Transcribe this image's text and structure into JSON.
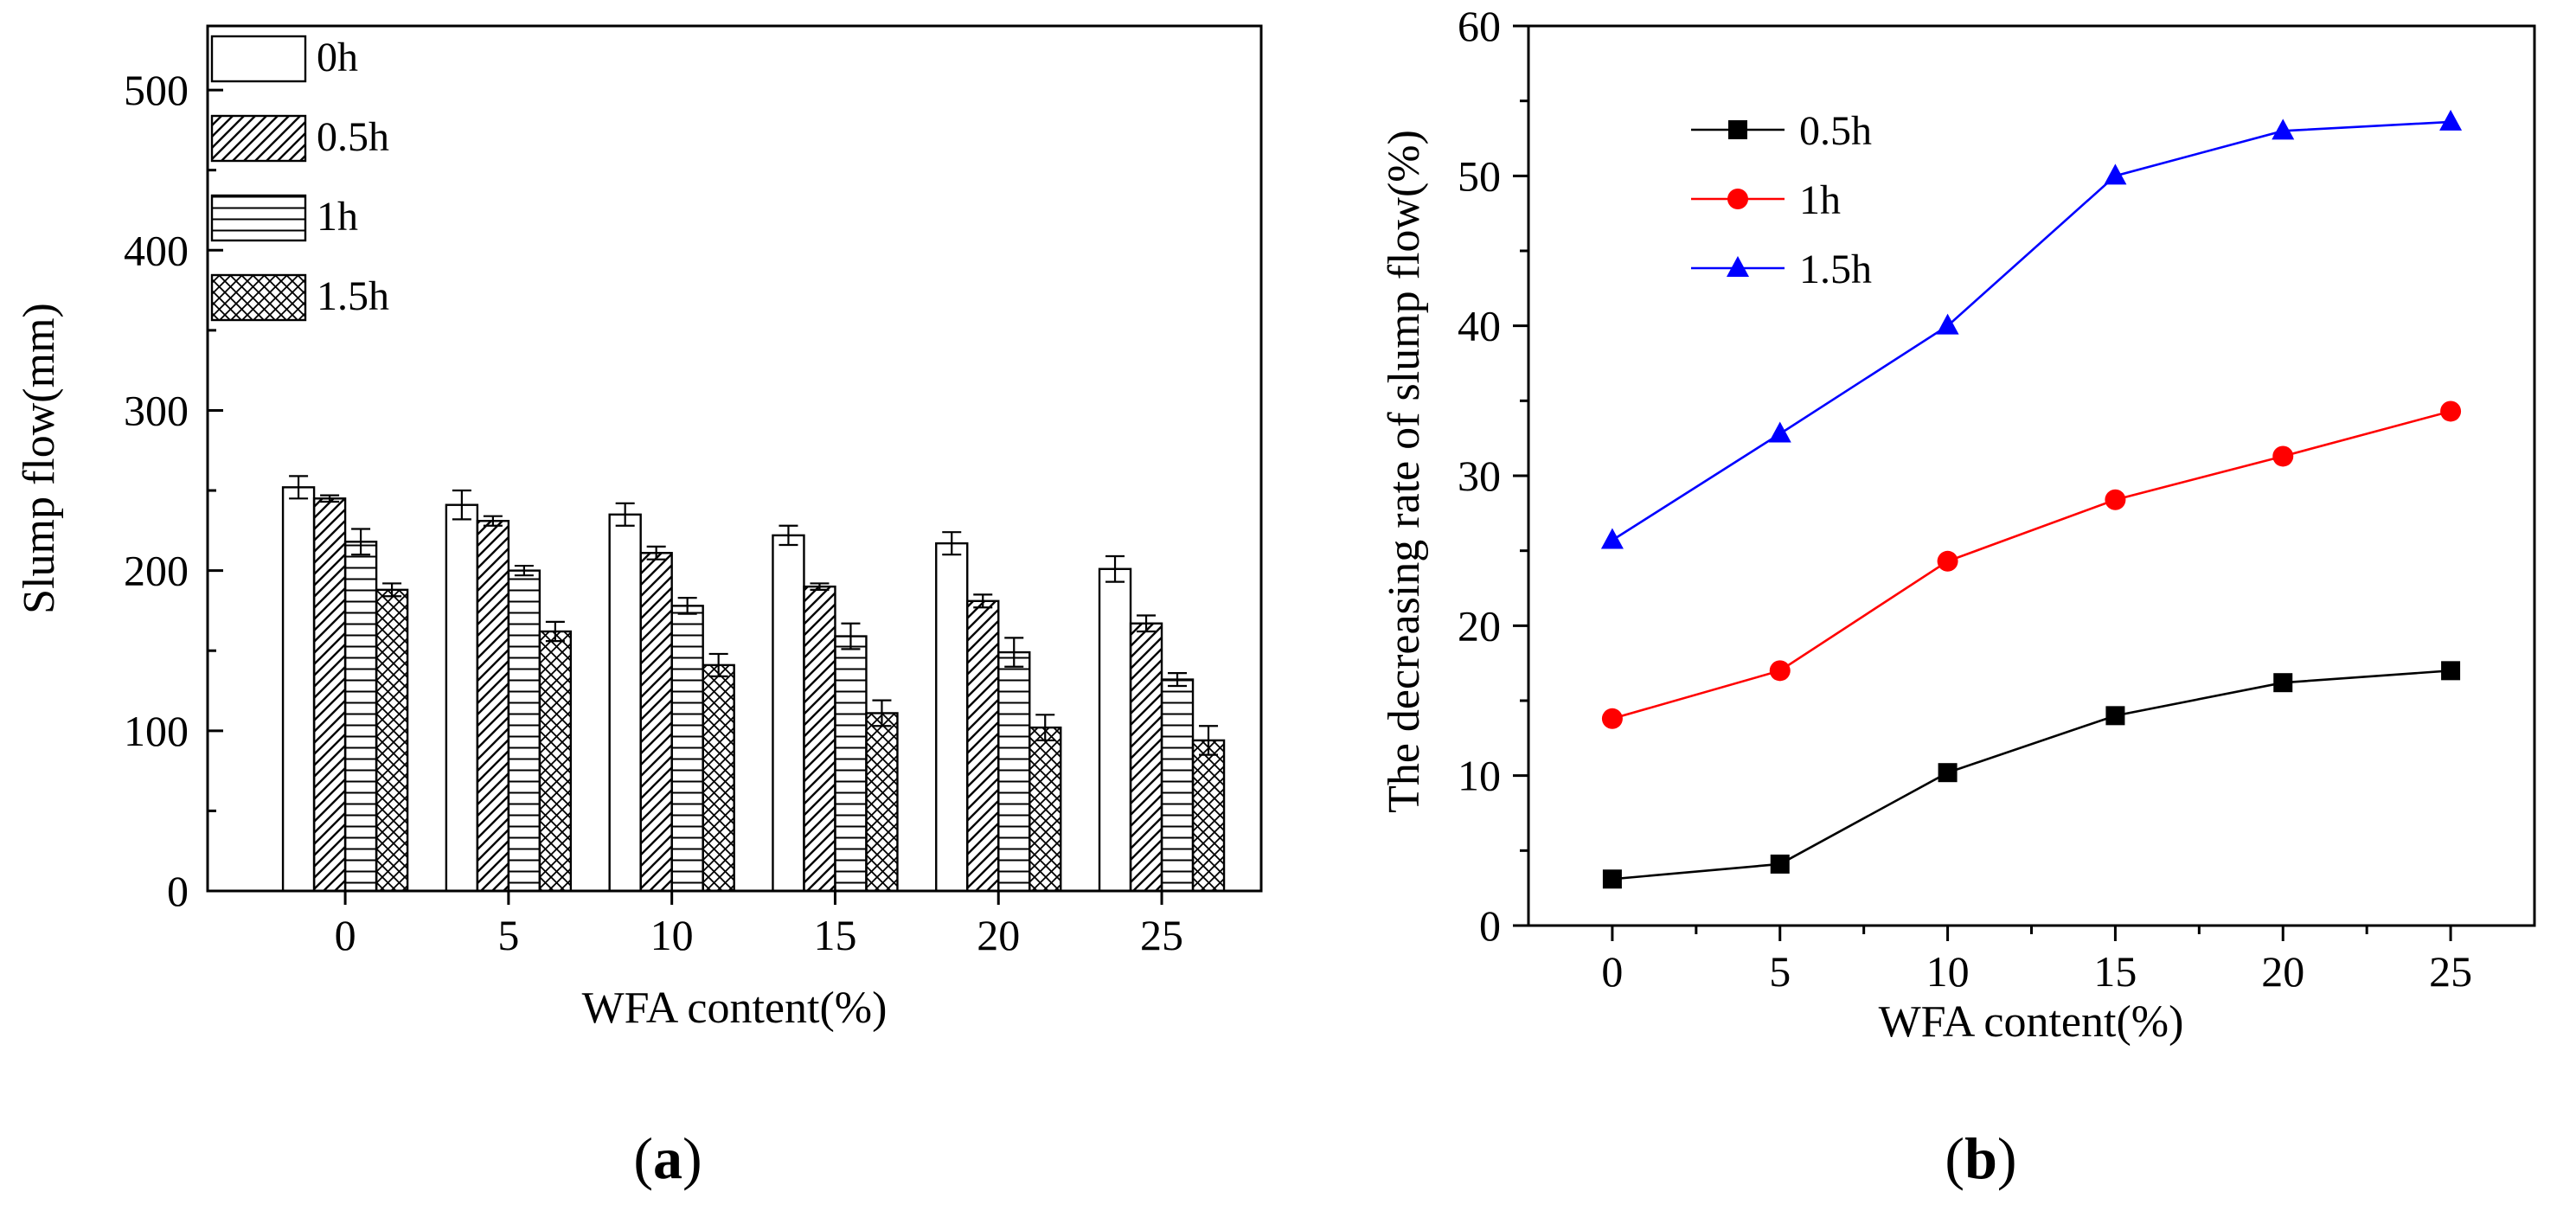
{
  "chart_data": [
    {
      "type": "bar",
      "panel": "(a)",
      "panel_label_letter": "a",
      "xlabel": "WFA content(%)",
      "ylabel": "Slump flow(mm)",
      "categories": [
        "0",
        "5",
        "10",
        "15",
        "20",
        "25"
      ],
      "ylim": [
        0,
        540
      ],
      "yticks": [
        0,
        100,
        200,
        300,
        400,
        500
      ],
      "legend_position": "top-left",
      "series": [
        {
          "name": "0h",
          "pattern": "open",
          "values": [
            252,
            241,
            235,
            222,
            217,
            201
          ],
          "errors": [
            7,
            9,
            7,
            6,
            7,
            8
          ]
        },
        {
          "name": "0.5h",
          "pattern": "diagonal-hatch",
          "values": [
            245,
            231,
            211,
            190,
            181,
            167
          ],
          "errors": [
            2,
            3,
            4,
            2,
            4,
            5
          ]
        },
        {
          "name": "1h",
          "pattern": "horizontal-lines",
          "values": [
            218,
            200,
            178,
            159,
            149,
            132
          ],
          "errors": [
            8,
            3,
            5,
            8,
            9,
            4
          ]
        },
        {
          "name": "1.5h",
          "pattern": "crosshatch",
          "values": [
            188,
            162,
            141,
            111,
            102,
            94
          ],
          "errors": [
            4,
            6,
            7,
            8,
            8,
            9
          ]
        }
      ]
    },
    {
      "type": "line",
      "panel": "(b)",
      "panel_label_letter": "b",
      "xlabel": "WFA content(%)",
      "ylabel": "The decreasing rate of slump flow(%)",
      "x": [
        0,
        5,
        10,
        15,
        20,
        25
      ],
      "xlim": [
        -2.5,
        27.5
      ],
      "ylim": [
        0,
        60
      ],
      "yticks": [
        0,
        10,
        20,
        30,
        40,
        50,
        60
      ],
      "xticks": [
        0,
        5,
        10,
        15,
        20,
        25
      ],
      "legend_position": "top-left",
      "series": [
        {
          "name": "0.5h",
          "color": "#000000",
          "marker": "square",
          "values": [
            3.1,
            4.1,
            10.2,
            14.0,
            16.2,
            17.0
          ]
        },
        {
          "name": "1h",
          "color": "#ff0000",
          "marker": "circle",
          "values": [
            13.8,
            17.0,
            24.3,
            28.4,
            31.3,
            34.3
          ]
        },
        {
          "name": "1.5h",
          "color": "#0000ff",
          "marker": "triangle",
          "values": [
            25.7,
            32.8,
            40.0,
            50.0,
            53.0,
            53.6
          ]
        }
      ]
    }
  ]
}
